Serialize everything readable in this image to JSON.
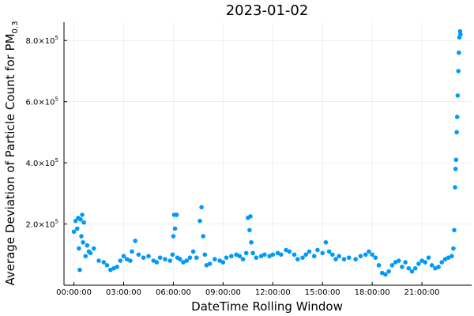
{
  "chart_data": {
    "type": "scatter",
    "title": "2023-01-02",
    "xlabel": "DateTime Rolling Window",
    "ylabel_main": "Average Deviation of Particle Count for PM",
    "ylabel_sub": "0.3",
    "x_unit": "hours since 2023-01-02 00:00:00",
    "xlim": [
      -0.6,
      24.0
    ],
    "ylim": [
      0,
      860000
    ],
    "x_ticks": [
      0,
      3,
      6,
      9,
      12,
      15,
      18,
      21
    ],
    "x_tick_labels": [
      "00:00:00",
      "03:00:00",
      "06:00:00",
      "09:00:00",
      "12:00:00",
      "15:00:00",
      "18:00:00",
      "21:00:00"
    ],
    "y_ticks": [
      200000,
      400000,
      600000,
      800000
    ],
    "y_tick_labels": [
      {
        "mantissa": "2.0×10",
        "exp": "5"
      },
      {
        "mantissa": "4.0×10",
        "exp": "5"
      },
      {
        "mantissa": "6.0×10",
        "exp": "5"
      },
      {
        "mantissa": "8.0×10",
        "exp": "5"
      }
    ],
    "grid": true,
    "legend": "none",
    "marker_color": "#009AFA",
    "series": [
      {
        "points": [
          [
            0.0,
            175000
          ],
          [
            0.1,
            210000
          ],
          [
            0.2,
            185000
          ],
          [
            0.25,
            220000
          ],
          [
            0.3,
            120000
          ],
          [
            0.35,
            50000
          ],
          [
            0.4,
            215000
          ],
          [
            0.45,
            160000
          ],
          [
            0.5,
            230000
          ],
          [
            0.55,
            140000
          ],
          [
            0.6,
            205000
          ],
          [
            0.7,
            95000
          ],
          [
            0.8,
            130000
          ],
          [
            0.9,
            110000
          ],
          [
            1.0,
            105000
          ],
          [
            1.2,
            120000
          ],
          [
            1.5,
            80000
          ],
          [
            1.8,
            75000
          ],
          [
            2.0,
            65000
          ],
          [
            2.2,
            50000
          ],
          [
            2.4,
            55000
          ],
          [
            2.6,
            60000
          ],
          [
            2.8,
            80000
          ],
          [
            3.0,
            95000
          ],
          [
            3.2,
            85000
          ],
          [
            3.4,
            80000
          ],
          [
            3.5,
            110000
          ],
          [
            3.7,
            145000
          ],
          [
            3.9,
            100000
          ],
          [
            4.2,
            90000
          ],
          [
            4.5,
            95000
          ],
          [
            4.8,
            80000
          ],
          [
            5.0,
            75000
          ],
          [
            5.2,
            90000
          ],
          [
            5.5,
            85000
          ],
          [
            5.8,
            80000
          ],
          [
            5.95,
            100000
          ],
          [
            6.0,
            160000
          ],
          [
            6.05,
            230000
          ],
          [
            6.1,
            185000
          ],
          [
            6.2,
            230000
          ],
          [
            6.25,
            90000
          ],
          [
            6.4,
            85000
          ],
          [
            6.6,
            75000
          ],
          [
            6.8,
            80000
          ],
          [
            7.0,
            90000
          ],
          [
            7.2,
            110000
          ],
          [
            7.4,
            90000
          ],
          [
            7.6,
            210000
          ],
          [
            7.7,
            255000
          ],
          [
            7.8,
            160000
          ],
          [
            7.9,
            100000
          ],
          [
            8.0,
            65000
          ],
          [
            8.2,
            70000
          ],
          [
            8.5,
            85000
          ],
          [
            8.8,
            80000
          ],
          [
            9.0,
            75000
          ],
          [
            9.2,
            90000
          ],
          [
            9.5,
            95000
          ],
          [
            9.8,
            100000
          ],
          [
            10.0,
            95000
          ],
          [
            10.2,
            85000
          ],
          [
            10.4,
            105000
          ],
          [
            10.5,
            220000
          ],
          [
            10.6,
            180000
          ],
          [
            10.65,
            225000
          ],
          [
            10.7,
            140000
          ],
          [
            10.8,
            105000
          ],
          [
            11.0,
            90000
          ],
          [
            11.3,
            95000
          ],
          [
            11.5,
            100000
          ],
          [
            11.8,
            95000
          ],
          [
            12.0,
            100000
          ],
          [
            12.3,
            105000
          ],
          [
            12.5,
            100000
          ],
          [
            12.8,
            115000
          ],
          [
            13.0,
            110000
          ],
          [
            13.3,
            100000
          ],
          [
            13.5,
            85000
          ],
          [
            13.8,
            90000
          ],
          [
            14.0,
            100000
          ],
          [
            14.2,
            110000
          ],
          [
            14.5,
            95000
          ],
          [
            14.7,
            115000
          ],
          [
            15.0,
            105000
          ],
          [
            15.2,
            140000
          ],
          [
            15.4,
            110000
          ],
          [
            15.6,
            100000
          ],
          [
            15.8,
            85000
          ],
          [
            16.0,
            95000
          ],
          [
            16.3,
            85000
          ],
          [
            16.6,
            90000
          ],
          [
            17.0,
            85000
          ],
          [
            17.3,
            95000
          ],
          [
            17.6,
            100000
          ],
          [
            17.8,
            110000
          ],
          [
            18.0,
            100000
          ],
          [
            18.2,
            90000
          ],
          [
            18.4,
            65000
          ],
          [
            18.6,
            40000
          ],
          [
            18.8,
            35000
          ],
          [
            19.0,
            45000
          ],
          [
            19.2,
            65000
          ],
          [
            19.4,
            75000
          ],
          [
            19.6,
            80000
          ],
          [
            19.8,
            60000
          ],
          [
            20.0,
            75000
          ],
          [
            20.2,
            55000
          ],
          [
            20.4,
            45000
          ],
          [
            20.6,
            55000
          ],
          [
            20.8,
            70000
          ],
          [
            21.0,
            80000
          ],
          [
            21.2,
            75000
          ],
          [
            21.4,
            90000
          ],
          [
            21.6,
            65000
          ],
          [
            21.8,
            55000
          ],
          [
            22.0,
            60000
          ],
          [
            22.2,
            75000
          ],
          [
            22.4,
            85000
          ],
          [
            22.6,
            90000
          ],
          [
            22.8,
            95000
          ],
          [
            22.9,
            120000
          ],
          [
            22.95,
            180000
          ],
          [
            23.0,
            320000
          ],
          [
            23.03,
            380000
          ],
          [
            23.06,
            410000
          ],
          [
            23.1,
            500000
          ],
          [
            23.13,
            550000
          ],
          [
            23.16,
            620000
          ],
          [
            23.2,
            700000
          ],
          [
            23.23,
            760000
          ],
          [
            23.26,
            810000
          ],
          [
            23.3,
            830000
          ],
          [
            23.33,
            820000
          ]
        ]
      }
    ]
  }
}
